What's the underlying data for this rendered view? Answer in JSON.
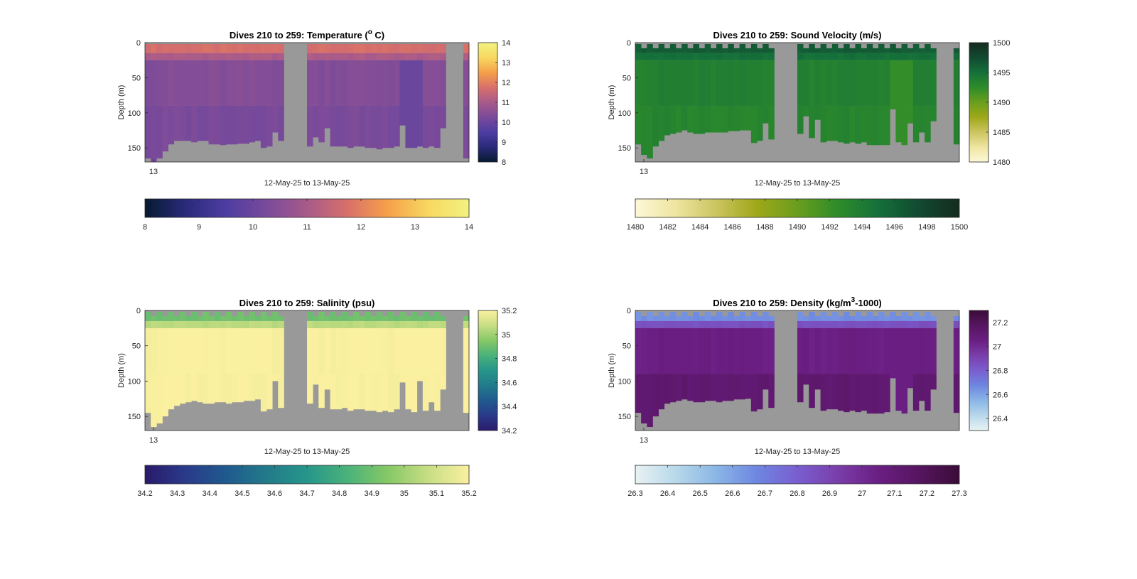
{
  "chart_data": [
    {
      "type": "heatmap",
      "title_main": "Dives 210 to 259: Temperature (",
      "title_sup": "o",
      "title_end": " C)",
      "xlabel": "12-May-25 to 13-May-25",
      "ylabel": "Depth (m)",
      "x_ticks": [
        "13"
      ],
      "y_ticks": [
        0,
        50,
        100,
        150
      ],
      "ylim": [
        0,
        170
      ],
      "clim": [
        8,
        14
      ],
      "colormap": [
        "#061a30",
        "#2a2a7a",
        "#4d3da2",
        "#7a4a9a",
        "#a85a8a",
        "#d8706a",
        "#f5a04a",
        "#f8d860",
        "#f2f282"
      ],
      "side_colorbar_ticks": [
        "14",
        "13",
        "12",
        "11",
        "10",
        "9",
        "8"
      ],
      "bottom_colorbar_ticks": [
        "8",
        "9",
        "10",
        "11",
        "12",
        "13",
        "14"
      ],
      "bottom_colorbar_range": [
        8,
        14
      ],
      "profile": {
        "surface_layer_depth": 15,
        "surface_value": 11.7,
        "deep_value": 10.4,
        "bottom_value": 10.25,
        "late_cool_patch_value": 10.0
      },
      "data_gaps": [
        [
          0.42,
          0.5
        ],
        [
          0.92,
          0.99
        ]
      ],
      "dive_max_depth_m": [
        165,
        170,
        165,
        155,
        145,
        140,
        140,
        140,
        142,
        140,
        140,
        145,
        145,
        146,
        145,
        145,
        144,
        144,
        142,
        140,
        150,
        148,
        128,
        140,
        148,
        135,
        142,
        122,
        148,
        148,
        148,
        150,
        148,
        148,
        150,
        150,
        152,
        150,
        150,
        148,
        118,
        150,
        150,
        148,
        150,
        148,
        150,
        122
      ]
    },
    {
      "type": "heatmap",
      "title_main": "Dives 210 to 259: Sound Velocity (m/s)",
      "title_sup": "",
      "title_end": "",
      "xlabel": "12-May-25 to 13-May-25",
      "ylabel": "Depth (m)",
      "x_ticks": [
        "13"
      ],
      "y_ticks": [
        0,
        50,
        100,
        150
      ],
      "ylim": [
        0,
        170
      ],
      "clim": [
        1480,
        1500
      ],
      "colormap": [
        "#fdf8d8",
        "#eee5a0",
        "#cbc460",
        "#9ea818",
        "#6a9e1e",
        "#2e8c2a",
        "#14703a",
        "#124a30",
        "#152b1e"
      ],
      "side_colorbar_ticks": [
        "1500",
        "1495",
        "1490",
        "1485",
        "1480"
      ],
      "bottom_colorbar_ticks": [
        "1480",
        "1482",
        "1484",
        "1486",
        "1488",
        "1490",
        "1492",
        "1494",
        "1496",
        "1498",
        "1500"
      ],
      "bottom_colorbar_range": [
        1480,
        1500
      ],
      "profile": {
        "surface_layer_depth": 15,
        "surface_value": 1496.3,
        "deep_value": 1493.6,
        "bottom_value": 1493.2,
        "late_cool_patch_value": 1492.3
      },
      "data_gaps": [
        [
          0.42,
          0.5
        ],
        [
          0.92,
          0.99
        ]
      ],
      "dive_max_depth_m": [
        145,
        160,
        165,
        148,
        140,
        132,
        130,
        128,
        125,
        128,
        130,
        130,
        128,
        128,
        128,
        128,
        126,
        126,
        125,
        125,
        143,
        140,
        115,
        138,
        130,
        105,
        136,
        110,
        142,
        140,
        140,
        142,
        144,
        142,
        144,
        142,
        146,
        146,
        146,
        146,
        95,
        142,
        146,
        115,
        142,
        128,
        142,
        112
      ]
    },
    {
      "type": "heatmap",
      "title_main": "Dives 210 to 259: Salinity (psu)",
      "title_sup": "",
      "title_end": "",
      "xlabel": "12-May-25 to 13-May-25",
      "ylabel": "Depth (m)",
      "x_ticks": [
        "13"
      ],
      "y_ticks": [
        0,
        50,
        100,
        150
      ],
      "ylim": [
        0,
        170
      ],
      "clim": [
        34.2,
        35.2
      ],
      "colormap": [
        "#2a1a6a",
        "#2a3a8a",
        "#1f5a8e",
        "#227a8a",
        "#26968a",
        "#4ab27a",
        "#86c866",
        "#c8de84",
        "#faf0a0"
      ],
      "side_colorbar_ticks": [
        "35.2",
        "35",
        "34.8",
        "34.6",
        "34.4",
        "34.2"
      ],
      "bottom_colorbar_ticks": [
        "34.2",
        "34.3",
        "34.4",
        "34.5",
        "34.6",
        "34.7",
        "34.8",
        "34.9",
        "35",
        "35.1",
        "35.2"
      ],
      "bottom_colorbar_range": [
        34.2,
        35.2
      ],
      "profile": {
        "surface_layer_depth": 15,
        "surface_value": 34.9,
        "deep_value": 35.2,
        "bottom_value": 35.2,
        "late_cool_patch_value": 35.2
      },
      "data_gaps": [
        [
          0.42,
          0.5
        ],
        [
          0.92,
          0.99
        ]
      ],
      "dive_max_depth_m": [
        145,
        165,
        160,
        150,
        140,
        135,
        132,
        130,
        128,
        130,
        132,
        132,
        130,
        130,
        132,
        130,
        130,
        128,
        128,
        126,
        143,
        140,
        100,
        138,
        132,
        105,
        138,
        112,
        140,
        140,
        138,
        142,
        140,
        140,
        142,
        142,
        144,
        142,
        144,
        140,
        102,
        140,
        144,
        100,
        142,
        130,
        142,
        112
      ]
    },
    {
      "type": "heatmap",
      "title_main": "Dives 210 to 259: Density (kg/m",
      "title_sup": "3",
      "title_end": "-1000)",
      "xlabel": "12-May-25 to 13-May-25",
      "ylabel": "Depth (m)",
      "x_ticks": [
        "13"
      ],
      "y_ticks": [
        0,
        50,
        100,
        150
      ],
      "ylim": [
        0,
        170
      ],
      "clim": [
        26.3,
        27.3
      ],
      "colormap": [
        "#e8f2f2",
        "#b8d8ea",
        "#8ab6e6",
        "#6e86e0",
        "#7a5ed0",
        "#7a3eaa",
        "#6a1e82",
        "#561560",
        "#3a0c38"
      ],
      "side_colorbar_ticks": [
        "27.2",
        "27",
        "26.8",
        "26.6",
        "26.4"
      ],
      "side_colorbar_range": [
        26.3,
        27.3
      ],
      "bottom_colorbar_ticks": [
        "26.3",
        "26.4",
        "26.5",
        "26.6",
        "26.7",
        "26.8",
        "26.9",
        "27",
        "27.1",
        "27.2",
        "27.3"
      ],
      "bottom_colorbar_range": [
        26.3,
        27.3
      ],
      "profile": {
        "surface_layer_depth": 15,
        "surface_value": 26.65,
        "deep_value": 27.05,
        "bottom_value": 27.12,
        "late_cool_patch_value": 27.05
      },
      "data_gaps": [
        [
          0.42,
          0.5
        ],
        [
          0.92,
          0.99
        ]
      ],
      "dive_max_depth_m": [
        145,
        160,
        165,
        150,
        140,
        132,
        130,
        128,
        126,
        128,
        130,
        130,
        128,
        128,
        130,
        128,
        128,
        126,
        126,
        125,
        143,
        140,
        112,
        138,
        130,
        105,
        138,
        112,
        142,
        140,
        140,
        142,
        144,
        142,
        144,
        142,
        146,
        146,
        146,
        144,
        96,
        142,
        146,
        110,
        142,
        128,
        142,
        112
      ]
    }
  ]
}
